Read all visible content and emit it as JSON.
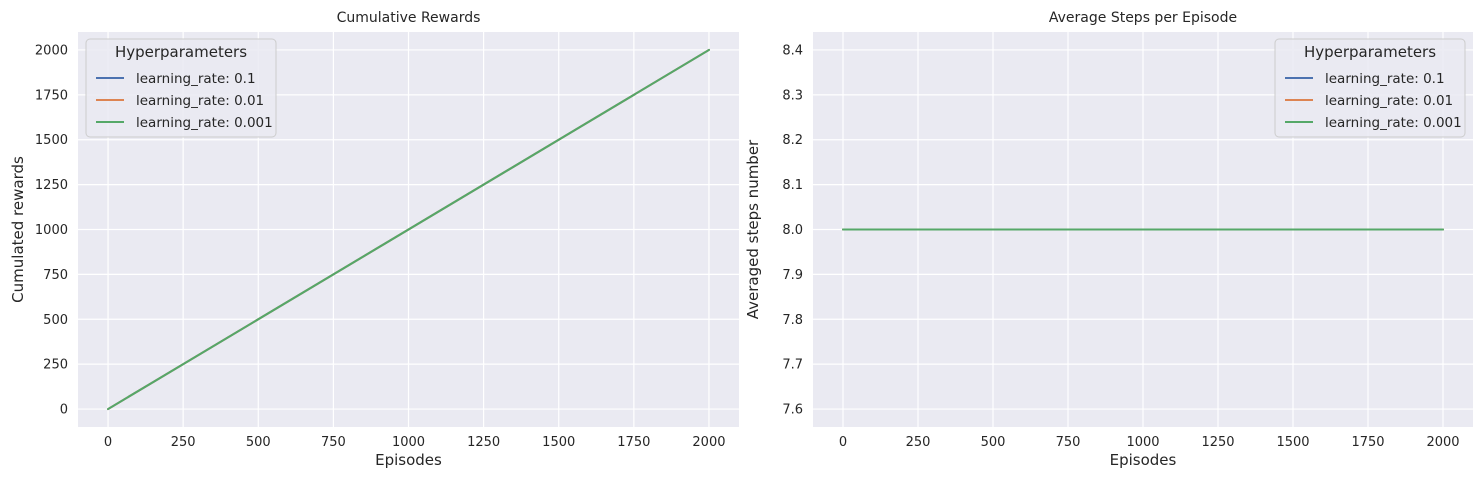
{
  "chart_data": [
    {
      "type": "line",
      "title": "Cumulative Rewards",
      "xlabel": "Episodes",
      "ylabel": "Cumulated rewards",
      "xlim": [
        -100,
        2100
      ],
      "ylim": [
        -100,
        2100
      ],
      "xticks": [
        0,
        250,
        500,
        750,
        1000,
        1250,
        1500,
        1750,
        2000
      ],
      "yticks": [
        0,
        250,
        500,
        750,
        1000,
        1250,
        1500,
        1750,
        2000
      ],
      "ytick_labels": [
        "0",
        "250",
        "500",
        "750",
        "1000",
        "1250",
        "1500",
        "1750",
        "2000"
      ],
      "grid": true,
      "legend": {
        "title": "Hyperparameters",
        "placement": "top-left"
      },
      "series": [
        {
          "name": "learning_rate: 0.1",
          "color": "#4c72b0",
          "x": [
            0,
            2000
          ],
          "y": [
            0,
            2000
          ]
        },
        {
          "name": "learning_rate: 0.01",
          "color": "#dd8452",
          "x": [
            0,
            2000
          ],
          "y": [
            0,
            2000
          ]
        },
        {
          "name": "learning_rate: 0.001",
          "color": "#55a868",
          "x": [
            0,
            2000
          ],
          "y": [
            0,
            2000
          ]
        }
      ]
    },
    {
      "type": "line",
      "title": "Average Steps per Episode",
      "xlabel": "Episodes",
      "ylabel": "Averaged steps number",
      "xlim": [
        -100,
        2100
      ],
      "ylim": [
        7.56,
        8.44
      ],
      "xticks": [
        0,
        250,
        500,
        750,
        1000,
        1250,
        1500,
        1750,
        2000
      ],
      "yticks": [
        7.6,
        7.7,
        7.8,
        7.9,
        8.0,
        8.1,
        8.2,
        8.3,
        8.4
      ],
      "ytick_labels": [
        "7.6",
        "7.7",
        "7.8",
        "7.9",
        "8.0",
        "8.1",
        "8.2",
        "8.3",
        "8.4"
      ],
      "grid": true,
      "legend": {
        "title": "Hyperparameters",
        "placement": "top-right"
      },
      "series": [
        {
          "name": "learning_rate: 0.1",
          "color": "#4c72b0",
          "x": [
            0,
            2000
          ],
          "y": [
            8.0,
            8.0
          ]
        },
        {
          "name": "learning_rate: 0.01",
          "color": "#dd8452",
          "x": [
            0,
            2000
          ],
          "y": [
            8.0,
            8.0
          ]
        },
        {
          "name": "learning_rate: 0.001",
          "color": "#55a868",
          "x": [
            0,
            2000
          ],
          "y": [
            8.0,
            8.0
          ]
        }
      ]
    }
  ]
}
